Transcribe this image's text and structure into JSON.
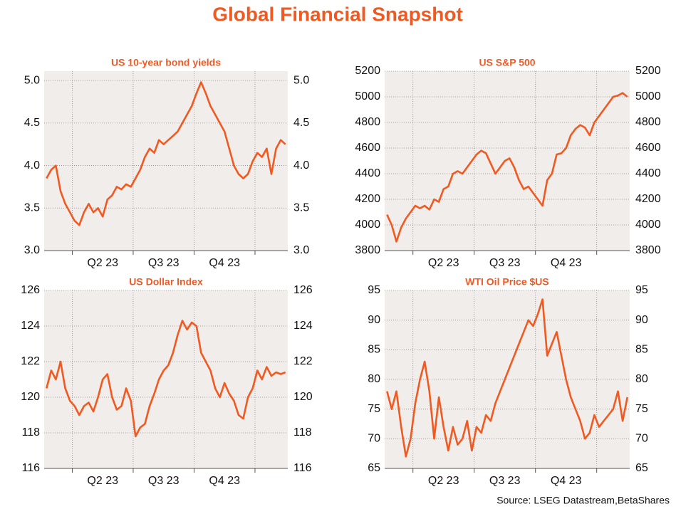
{
  "title": "Global Financial Snapshot",
  "source": "Source: LSEG Datastream,BetaShares",
  "chart_data": [
    {
      "type": "line",
      "title": "US 10-year bond yields",
      "color": "#f05a22",
      "grid": true,
      "categories": [
        null,
        null,
        null,
        null,
        null,
        null,
        null,
        null,
        null,
        null,
        null,
        null,
        "Q2 23",
        null,
        null,
        null,
        null,
        null,
        null,
        null,
        null,
        null,
        null,
        null,
        null,
        "Q3 23",
        null,
        null,
        null,
        null,
        null,
        null,
        null,
        null,
        null,
        null,
        null,
        null,
        "Q4 23",
        null,
        null,
        null,
        null,
        null,
        null,
        null,
        null,
        null,
        null,
        null,
        null,
        null
      ],
      "values": [
        3.85,
        3.95,
        4.0,
        3.7,
        3.55,
        3.45,
        3.35,
        3.3,
        3.45,
        3.55,
        3.45,
        3.5,
        3.4,
        3.6,
        3.65,
        3.75,
        3.72,
        3.78,
        3.75,
        3.85,
        3.95,
        4.1,
        4.2,
        4.15,
        4.3,
        4.25,
        4.3,
        4.35,
        4.4,
        4.5,
        4.6,
        4.7,
        4.85,
        4.98,
        4.85,
        4.7,
        4.6,
        4.5,
        4.4,
        4.2,
        4.0,
        3.9,
        3.85,
        3.9,
        4.05,
        4.15,
        4.1,
        4.2,
        3.9,
        4.2,
        4.3,
        4.25
      ],
      "ylim": [
        3.0,
        5.11
      ],
      "yticks": [
        {
          "value": 3,
          "label": "3.0"
        },
        3.5,
        {
          "value": 4,
          "label": "4.0"
        },
        4.5,
        {
          "value": 5,
          "label": "5.0"
        }
      ]
    },
    {
      "type": "line",
      "title": "US S&P 500",
      "color": "#f05a22",
      "grid": true,
      "categories": [
        null,
        null,
        null,
        null,
        null,
        null,
        null,
        null,
        null,
        null,
        null,
        null,
        "Q2 23",
        null,
        null,
        null,
        null,
        null,
        null,
        null,
        null,
        null,
        null,
        null,
        null,
        "Q3 23",
        null,
        null,
        null,
        null,
        null,
        null,
        null,
        null,
        null,
        null,
        null,
        null,
        "Q4 23",
        null,
        null,
        null,
        null,
        null,
        null,
        null,
        null,
        null,
        null,
        null,
        null,
        null
      ],
      "values": [
        4080,
        4000,
        3870,
        3980,
        4050,
        4100,
        4150,
        4130,
        4150,
        4120,
        4200,
        4180,
        4280,
        4300,
        4400,
        4420,
        4400,
        4450,
        4500,
        4550,
        4580,
        4560,
        4480,
        4400,
        4450,
        4500,
        4520,
        4450,
        4350,
        4280,
        4300,
        4250,
        4200,
        4150,
        4350,
        4400,
        4550,
        4560,
        4600,
        4700,
        4750,
        4780,
        4760,
        4700,
        4800,
        4850,
        4900,
        4950,
        5000,
        5010,
        5030,
        5000
      ],
      "ylim": [
        3800,
        5200
      ],
      "yticks": [
        3800,
        4000,
        4200,
        4400,
        4600,
        4800,
        5000,
        5200
      ]
    },
    {
      "type": "line",
      "title": "US Dollar Index",
      "color": "#f05a22",
      "grid": true,
      "categories": [
        null,
        null,
        null,
        null,
        null,
        null,
        null,
        null,
        null,
        null,
        null,
        null,
        "Q2 23",
        null,
        null,
        null,
        null,
        null,
        null,
        null,
        null,
        null,
        null,
        null,
        null,
        "Q3 23",
        null,
        null,
        null,
        null,
        null,
        null,
        null,
        null,
        null,
        null,
        null,
        null,
        "Q4 23",
        null,
        null,
        null,
        null,
        null,
        null,
        null,
        null,
        null,
        null,
        null,
        null,
        null
      ],
      "values": [
        120.5,
        121.5,
        121,
        122,
        120.5,
        119.8,
        119.5,
        119,
        119.5,
        119.7,
        119.2,
        120,
        121,
        121.3,
        120,
        119.3,
        119.5,
        120.5,
        119.8,
        117.8,
        118.3,
        118.5,
        119.5,
        120.2,
        121,
        121.5,
        121.8,
        122.5,
        123.5,
        124.3,
        123.8,
        124.2,
        124,
        122.5,
        122,
        121.5,
        120.5,
        120,
        120.8,
        120.2,
        119.8,
        119,
        118.8,
        120,
        120.5,
        121.5,
        121,
        121.7,
        121.2,
        121.4,
        121.3,
        121.4
      ],
      "ylim": [
        116,
        126
      ],
      "yticks": [
        116,
        118,
        120,
        122,
        124,
        126
      ]
    },
    {
      "type": "line",
      "title": "WTI Oil Price $US",
      "color": "#f05a22",
      "grid": true,
      "categories": [
        null,
        null,
        null,
        null,
        null,
        null,
        null,
        null,
        null,
        null,
        null,
        null,
        "Q2 23",
        null,
        null,
        null,
        null,
        null,
        null,
        null,
        null,
        null,
        null,
        null,
        null,
        "Q3 23",
        null,
        null,
        null,
        null,
        null,
        null,
        null,
        null,
        null,
        null,
        null,
        null,
        "Q4 23",
        null,
        null,
        null,
        null,
        null,
        null,
        null,
        null,
        null,
        null,
        null,
        null,
        null
      ],
      "values": [
        78,
        75,
        78,
        72,
        67,
        70,
        76,
        80,
        83,
        78,
        70,
        77,
        72,
        68,
        72,
        69,
        70,
        73,
        68,
        72,
        71,
        74,
        73,
        76,
        78,
        80,
        82,
        84,
        86,
        88,
        90,
        89,
        91,
        93.5,
        84,
        86,
        88,
        84,
        80,
        77,
        75,
        73,
        70,
        71,
        74,
        72,
        73,
        74,
        75,
        78,
        73,
        77
      ],
      "ylim": [
        65,
        95
      ],
      "yticks": [
        65,
        70,
        75,
        80,
        85,
        90,
        95
      ]
    }
  ]
}
